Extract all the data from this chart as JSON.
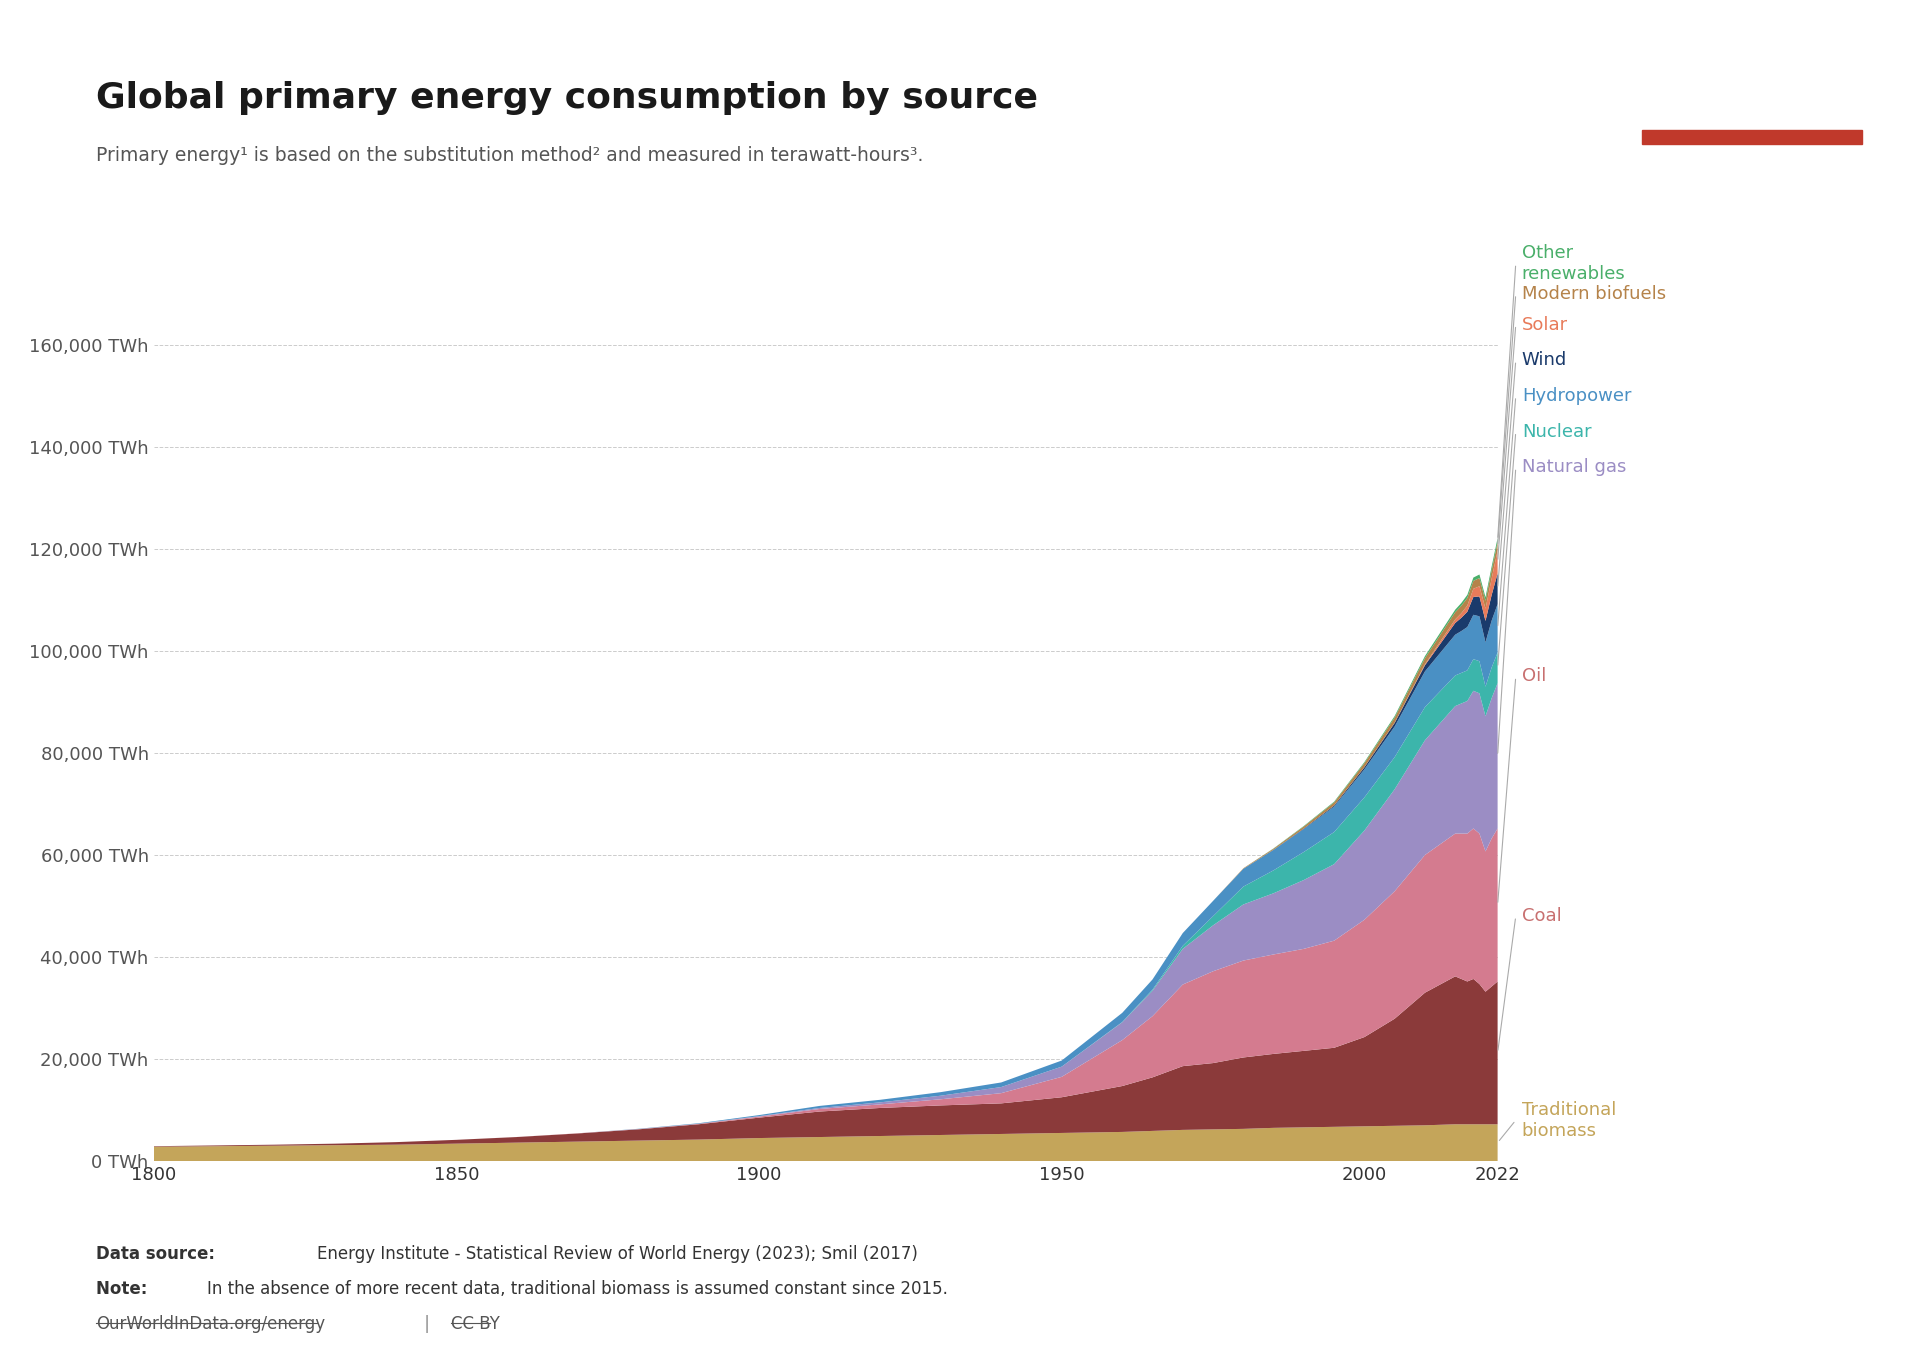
{
  "title": "Global primary energy consumption by source",
  "subtitle": "Primary energy¹ is based on the substitution method² and measured in terawatt-hours³.",
  "data_source": "Energy Institute - Statistical Review of World Energy (2023); Smil (2017)",
  "note": "In the absence of more recent data, traditional biomass is assumed constant since 2015.",
  "url": "OurWorldInData.org/energy",
  "license": "CC BY",
  "years": [
    1800,
    1810,
    1820,
    1830,
    1840,
    1850,
    1860,
    1870,
    1880,
    1890,
    1900,
    1910,
    1920,
    1930,
    1940,
    1950,
    1960,
    1965,
    1970,
    1975,
    1980,
    1985,
    1990,
    1995,
    2000,
    2005,
    2010,
    2015,
    2016,
    2017,
    2018,
    2019,
    2020,
    2021,
    2022
  ],
  "sources": {
    "Traditional biomass": [
      2800,
      2900,
      3000,
      3100,
      3200,
      3400,
      3600,
      3800,
      4000,
      4200,
      4500,
      4700,
      4900,
      5100,
      5300,
      5500,
      5700,
      5900,
      6100,
      6200,
      6300,
      6500,
      6600,
      6700,
      6800,
      6900,
      7000,
      7200,
      7200,
      7200,
      7200,
      7200,
      7200,
      7200,
      7200
    ],
    "Coal": [
      100,
      150,
      200,
      300,
      500,
      750,
      1100,
      1600,
      2200,
      3000,
      4000,
      5000,
      5500,
      5800,
      6000,
      7000,
      9000,
      10500,
      12500,
      13000,
      14000,
      14500,
      15000,
      15500,
      17500,
      21000,
      26000,
      29000,
      28500,
      28000,
      28500,
      27500,
      26000,
      27000,
      28000
    ],
    "Oil": [
      0,
      0,
      0,
      0,
      0,
      0,
      10,
      30,
      60,
      100,
      200,
      500,
      700,
      1200,
      2000,
      4000,
      9000,
      12000,
      16000,
      18000,
      19000,
      19500,
      20000,
      21000,
      23000,
      25000,
      27000,
      28000,
      28500,
      29000,
      29500,
      29500,
      27500,
      29000,
      30000
    ],
    "Natural gas": [
      0,
      0,
      0,
      0,
      0,
      0,
      0,
      0,
      0,
      0,
      100,
      200,
      400,
      700,
      1200,
      2000,
      3500,
      5000,
      7000,
      9000,
      11000,
      12000,
      13500,
      15000,
      17500,
      20000,
      22500,
      25000,
      25500,
      26000,
      27000,
      27500,
      26500,
      27500,
      28500
    ],
    "Nuclear": [
      0,
      0,
      0,
      0,
      0,
      0,
      0,
      0,
      0,
      0,
      0,
      0,
      0,
      0,
      0,
      0,
      50,
      200,
      600,
      1800,
      3500,
      4500,
      5500,
      6300,
      6500,
      6300,
      6500,
      6000,
      6000,
      6000,
      6200,
      6300,
      5800,
      6000,
      6000
    ],
    "Hydropower": [
      0,
      0,
      0,
      0,
      0,
      0,
      0,
      0,
      50,
      100,
      200,
      400,
      500,
      700,
      900,
      1200,
      1800,
      2000,
      2500,
      3000,
      3500,
      4000,
      4500,
      5000,
      5500,
      6000,
      7000,
      8000,
      8200,
      8500,
      8700,
      8800,
      8700,
      9200,
      9500
    ],
    "Wind": [
      0,
      0,
      0,
      0,
      0,
      0,
      0,
      0,
      0,
      0,
      0,
      0,
      0,
      0,
      0,
      0,
      0,
      0,
      0,
      0,
      0,
      50,
      100,
      200,
      400,
      700,
      1200,
      2300,
      2600,
      3000,
      3500,
      3900,
      4200,
      5000,
      6000
    ],
    "Solar": [
      0,
      0,
      0,
      0,
      0,
      0,
      0,
      0,
      0,
      0,
      0,
      0,
      0,
      0,
      0,
      0,
      0,
      0,
      0,
      0,
      0,
      0,
      0,
      10,
      20,
      50,
      200,
      700,
      900,
      1200,
      1600,
      2000,
      2400,
      3200,
      4500
    ],
    "Modern biofuels": [
      0,
      0,
      0,
      0,
      0,
      0,
      0,
      0,
      0,
      0,
      0,
      0,
      0,
      0,
      0,
      0,
      0,
      0,
      0,
      0,
      100,
      200,
      400,
      600,
      800,
      1000,
      1200,
      1400,
      1450,
      1500,
      1550,
      1600,
      1550,
      1600,
      1650
    ],
    "Other renewables": [
      0,
      0,
      0,
      0,
      0,
      0,
      0,
      0,
      0,
      0,
      0,
      0,
      0,
      0,
      0,
      0,
      0,
      0,
      0,
      0,
      0,
      50,
      100,
      150,
      200,
      300,
      400,
      500,
      550,
      600,
      650,
      700,
      700,
      750,
      800
    ]
  },
  "colors": {
    "Traditional biomass": "#C4A55A",
    "Coal": "#8B3A3A",
    "Oil": "#D47B8F",
    "Natural gas": "#9B8DC4",
    "Nuclear": "#3CB5AB",
    "Hydropower": "#4A90C4",
    "Wind": "#1A3A6B",
    "Solar": "#E87B5A",
    "Modern biofuels": "#B5834A",
    "Other renewables": "#4AAF6A"
  },
  "label_colors": {
    "Traditional biomass": "#C4A55A",
    "Coal": "#C87070",
    "Oil": "#C87070",
    "Natural gas": "#9B8DC4",
    "Nuclear": "#3CB5AB",
    "Hydropower": "#4A90C4",
    "Wind": "#1A3A6B",
    "Solar": "#E87B5A",
    "Modern biofuels": "#B5834A",
    "Other renewables": "#4AAF6A"
  },
  "label_y_fixed": {
    "Other renewables": 176000,
    "Modern biofuels": 170000,
    "Solar": 164000,
    "Wind": 157000,
    "Hydropower": 150000,
    "Nuclear": 143000,
    "Natural gas": 136000,
    "Oil": 95000,
    "Coal": 48000,
    "Traditional biomass": 8000
  },
  "label_multiline": [
    "Traditional biomass",
    "Other renewables"
  ],
  "ylim": [
    0,
    180000
  ],
  "yticks": [
    0,
    20000,
    40000,
    60000,
    80000,
    100000,
    120000,
    140000,
    160000
  ],
  "ytick_labels": [
    "0 TWh",
    "20,000 TWh",
    "40,000 TWh",
    "60,000 TWh",
    "80,000 TWh",
    "100,000 TWh",
    "120,000 TWh",
    "140,000 TWh",
    "160,000 TWh"
  ],
  "xticks": [
    1800,
    1850,
    1900,
    1950,
    2000,
    2022
  ],
  "background_color": "#FFFFFF",
  "owid_logo_bg": "#1A3A6B",
  "owid_logo_red": "#C0392B"
}
